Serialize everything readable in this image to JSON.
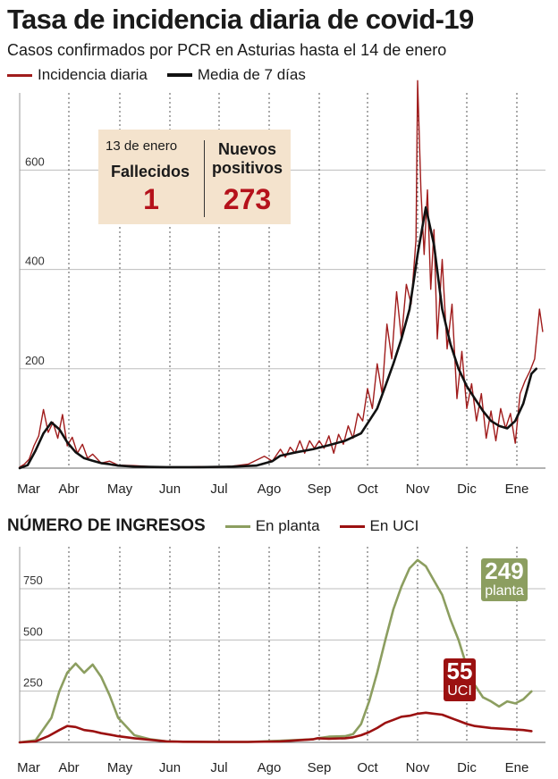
{
  "header": {
    "title": "Tasa de incidencia diaria de covid-19",
    "subtitle": "Casos confirmados por PCR en Asturias hasta el 14 de enero"
  },
  "infobox": {
    "date": "13 de enero",
    "deaths_label": "Fallecidos",
    "deaths_value": "1",
    "positives_label_line1": "Nuevos",
    "positives_label_line2": "positivos",
    "positives_value": "273"
  },
  "badges": {
    "planta_value": "249",
    "planta_label": "planta",
    "uci_value": "55",
    "uci_label": "UCI"
  },
  "colors": {
    "incidence": "#a01c1c",
    "average": "#111111",
    "planta": "#8c9e60",
    "uci": "#9b1111",
    "infobox_bg": "#f4e3cd"
  },
  "chart_data": [
    {
      "type": "line",
      "title": "",
      "xlabel": "",
      "ylabel": "",
      "ylim": [
        0,
        780
      ],
      "yticks": [
        200,
        400,
        600
      ],
      "x_ticks": [
        "Mar",
        "Abr",
        "May",
        "Jun",
        "Jul",
        "Ago",
        "Sep",
        "Oct",
        "Nov",
        "Dic",
        "Ene"
      ],
      "grid": "vertical dashed at month starts",
      "legend": "top-left",
      "series": [
        {
          "name": "Incidencia diaria",
          "days": [
            0,
            3,
            6,
            9,
            12,
            15,
            18,
            21,
            24,
            27,
            30,
            33,
            36,
            39,
            42,
            45,
            50,
            55,
            60,
            70,
            80,
            90,
            100,
            110,
            120,
            130,
            140,
            150,
            155,
            160,
            163,
            166,
            169,
            172,
            175,
            178,
            181,
            184,
            187,
            190,
            193,
            196,
            199,
            202,
            205,
            208,
            211,
            214,
            217,
            220,
            223,
            226,
            229,
            232,
            235,
            238,
            241,
            244,
            245,
            247,
            249,
            251,
            253,
            255,
            257,
            260,
            263,
            266,
            269,
            272,
            275,
            278,
            281,
            284,
            287,
            290,
            293,
            296,
            299,
            302,
            305,
            308,
            311,
            314,
            317,
            320,
            322
          ],
          "values": [
            2,
            8,
            18,
            45,
            65,
            118,
            72,
            92,
            60,
            108,
            45,
            62,
            30,
            48,
            20,
            28,
            10,
            14,
            6,
            5,
            3,
            2,
            2,
            3,
            2,
            4,
            8,
            24,
            14,
            38,
            22,
            42,
            30,
            55,
            30,
            55,
            40,
            55,
            40,
            65,
            30,
            68,
            48,
            85,
            60,
            110,
            95,
            160,
            120,
            210,
            150,
            290,
            220,
            355,
            260,
            370,
            330,
            460,
            780,
            560,
            430,
            560,
            360,
            480,
            260,
            420,
            240,
            330,
            140,
            235,
            120,
            170,
            95,
            150,
            60,
            115,
            55,
            120,
            80,
            110,
            50,
            150,
            175,
            195,
            220,
            320,
            275
          ]
        },
        {
          "name": "Media de 7 días",
          "days": [
            0,
            5,
            10,
            15,
            20,
            25,
            30,
            35,
            40,
            45,
            50,
            55,
            60,
            70,
            90,
            110,
            130,
            145,
            155,
            160,
            170,
            180,
            190,
            200,
            210,
            215,
            220,
            225,
            230,
            235,
            240,
            245,
            250,
            255,
            260,
            265,
            270,
            275,
            280,
            285,
            290,
            295,
            300,
            305,
            310,
            315,
            318
          ],
          "values": [
            0,
            6,
            35,
            70,
            92,
            78,
            52,
            32,
            20,
            15,
            10,
            8,
            5,
            3,
            2,
            2,
            3,
            5,
            14,
            25,
            32,
            38,
            46,
            55,
            70,
            95,
            120,
            165,
            210,
            260,
            320,
            430,
            525,
            450,
            320,
            250,
            200,
            165,
            140,
            115,
            95,
            85,
            80,
            95,
            130,
            190,
            200
          ]
        }
      ]
    },
    {
      "type": "line",
      "title": "NÚMERO DE INGRESOS",
      "xlabel": "",
      "ylabel": "",
      "ylim": [
        0,
        970
      ],
      "yticks": [
        250,
        500,
        750
      ],
      "x_ticks": [
        "Mar",
        "Abr",
        "May",
        "Jun",
        "Jul",
        "Ago",
        "Sep",
        "Oct",
        "Nov",
        "Dic",
        "Ene"
      ],
      "grid": "dashed",
      "legend": "top-right of title",
      "series": [
        {
          "name": "En planta",
          "days": [
            0,
            10,
            20,
            25,
            30,
            35,
            40,
            45,
            50,
            55,
            60,
            70,
            80,
            90,
            100,
            120,
            140,
            160,
            180,
            183,
            190,
            200,
            205,
            210,
            215,
            220,
            225,
            230,
            235,
            240,
            245,
            250,
            255,
            260,
            265,
            270,
            275,
            280,
            285,
            290,
            295,
            300,
            305,
            310,
            315
          ],
          "values": [
            0,
            10,
            120,
            250,
            340,
            385,
            340,
            380,
            320,
            230,
            120,
            35,
            15,
            5,
            3,
            2,
            2,
            8,
            15,
            20,
            28,
            30,
            40,
            90,
            200,
            340,
            500,
            650,
            760,
            850,
            890,
            860,
            790,
            720,
            600,
            500,
            370,
            280,
            220,
            200,
            175,
            200,
            190,
            210,
            249
          ]
        },
        {
          "name": "En UCI",
          "days": [
            0,
            10,
            18,
            25,
            30,
            35,
            40,
            45,
            50,
            55,
            60,
            70,
            80,
            90,
            100,
            120,
            140,
            160,
            180,
            183,
            190,
            200,
            205,
            210,
            215,
            220,
            225,
            230,
            235,
            240,
            245,
            250,
            255,
            260,
            265,
            270,
            275,
            280,
            285,
            290,
            300,
            310,
            315
          ],
          "values": [
            0,
            5,
            30,
            60,
            80,
            75,
            60,
            55,
            45,
            38,
            30,
            20,
            12,
            5,
            3,
            2,
            2,
            5,
            15,
            20,
            18,
            20,
            25,
            35,
            50,
            70,
            95,
            110,
            125,
            130,
            140,
            145,
            140,
            135,
            120,
            105,
            90,
            80,
            75,
            70,
            65,
            60,
            55
          ]
        }
      ]
    }
  ]
}
